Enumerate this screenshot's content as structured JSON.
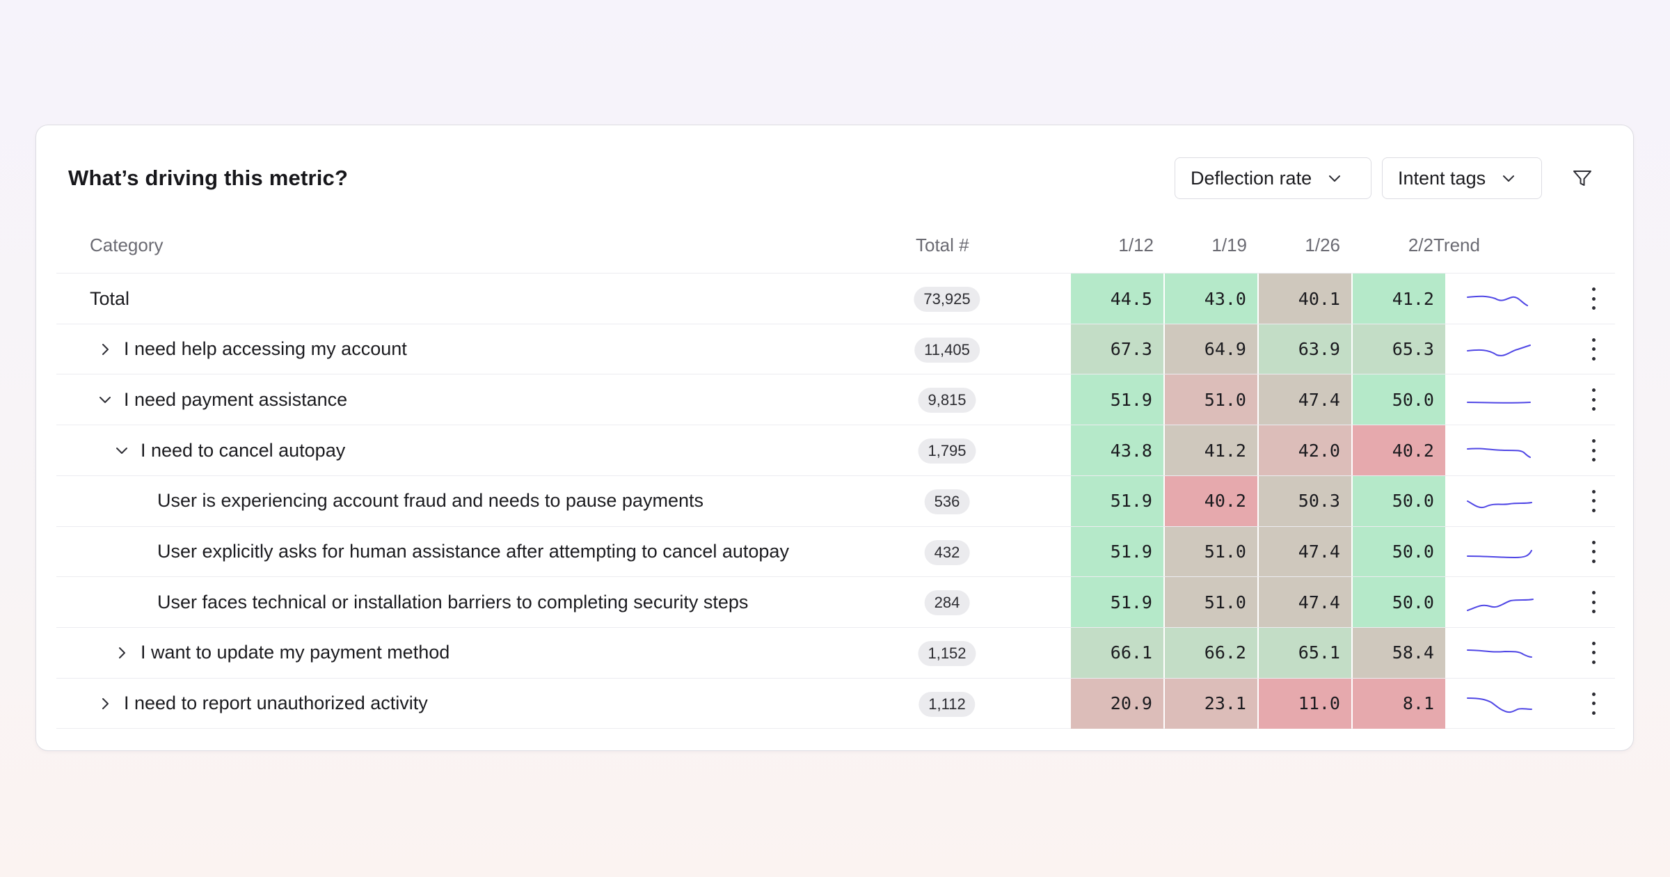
{
  "header": {
    "title": "What’s driving this metric?",
    "metric_dropdown": "Deflection rate",
    "group_dropdown": "Intent tags"
  },
  "columns": {
    "category": "Category",
    "total": "Total #",
    "dates": [
      "1/12",
      "1/19",
      "1/26",
      "2/2"
    ],
    "trend": "Trend"
  },
  "colors": {
    "green": "#b5e9c9",
    "green_muted": "#c3ddc6",
    "neutral": "#cfc8bd",
    "rose_light": "#dcbdb9",
    "rose": "#e6a9ad",
    "sparkline": "#4f46e5"
  },
  "rows": [
    {
      "label": "Total",
      "level": 0,
      "toggle": "none",
      "total": "73,925",
      "values": [
        "44.5",
        "43.0",
        "40.1",
        "41.2"
      ],
      "tones": [
        "green",
        "green",
        "neutral",
        "green"
      ]
    },
    {
      "label": "I need help accessing my account",
      "level": 1,
      "toggle": "collapsed",
      "total": "11,405",
      "values": [
        "67.3",
        "64.9",
        "63.9",
        "65.3"
      ],
      "tones": [
        "green_muted",
        "neutral",
        "green_muted",
        "green_muted"
      ]
    },
    {
      "label": "I need payment assistance",
      "level": 1,
      "toggle": "expanded",
      "total": "9,815",
      "values": [
        "51.9",
        "51.0",
        "47.4",
        "50.0"
      ],
      "tones": [
        "green",
        "rose_light",
        "neutral",
        "green"
      ]
    },
    {
      "label": "I need to cancel autopay",
      "level": 2,
      "toggle": "expanded",
      "total": "1,795",
      "values": [
        "43.8",
        "41.2",
        "42.0",
        "40.2"
      ],
      "tones": [
        "green",
        "neutral",
        "rose_light",
        "rose"
      ]
    },
    {
      "label": "User is experiencing account fraud and needs to pause payments",
      "level": 3,
      "toggle": "none",
      "total": "536",
      "values": [
        "51.9",
        "40.2",
        "50.3",
        "50.0"
      ],
      "tones": [
        "green",
        "rose",
        "neutral",
        "green"
      ]
    },
    {
      "label": "User explicitly asks for human assistance after attempting to cancel autopay",
      "level": 3,
      "toggle": "none",
      "total": "432",
      "values": [
        "51.9",
        "51.0",
        "47.4",
        "50.0"
      ],
      "tones": [
        "green",
        "neutral",
        "neutral",
        "green"
      ]
    },
    {
      "label": "User faces technical or installation barriers to completing security steps",
      "level": 3,
      "toggle": "none",
      "total": "284",
      "values": [
        "51.9",
        "51.0",
        "47.4",
        "50.0"
      ],
      "tones": [
        "green",
        "neutral",
        "neutral",
        "green"
      ]
    },
    {
      "label": "I want to update my payment method",
      "level": 2,
      "toggle": "collapsed",
      "total": "1,152",
      "values": [
        "66.1",
        "66.2",
        "65.1",
        "58.4"
      ],
      "tones": [
        "green_muted",
        "green_muted",
        "green_muted",
        "neutral"
      ]
    },
    {
      "label": "I need to report unauthorized activity",
      "level": 1,
      "toggle": "collapsed",
      "total": "1,112",
      "values": [
        "20.9",
        "23.1",
        "11.0",
        "8.1"
      ],
      "tones": [
        "rose_light",
        "rose_light",
        "rose",
        "rose"
      ]
    }
  ]
}
